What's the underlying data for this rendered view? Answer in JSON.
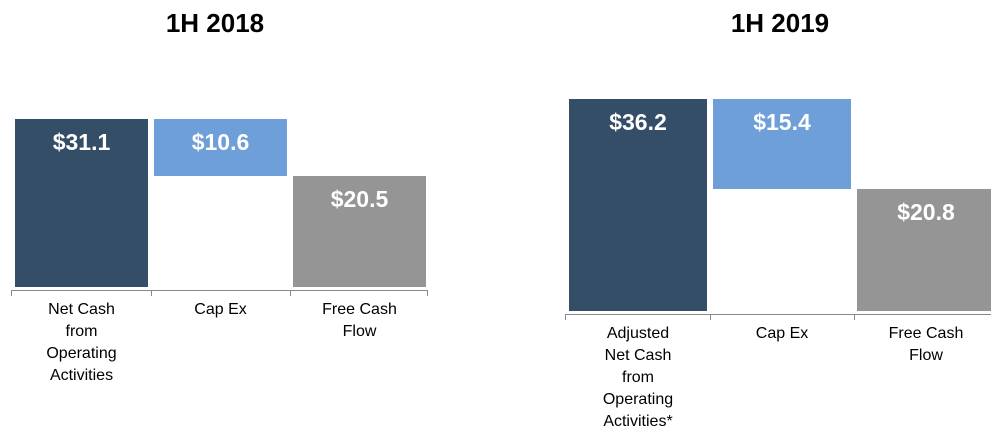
{
  "chart_data": [
    {
      "type": "waterfall",
      "title": "1H 2018",
      "categories": [
        "Net Cash from Operating Activities",
        "Cap Ex",
        "Free Cash Flow"
      ],
      "values": [
        31.1,
        10.6,
        20.5
      ],
      "value_labels": [
        "$31.1",
        "$10.6",
        "$20.5"
      ],
      "measure": [
        "total",
        "decrease",
        "total"
      ],
      "colors": [
        "#344e68",
        "#6f9fd8",
        "#959595"
      ]
    },
    {
      "type": "waterfall",
      "title": "1H 2019",
      "categories": [
        "Adjusted Net Cash from Operating Activities*",
        "Cap Ex",
        "Free Cash Flow"
      ],
      "values": [
        36.2,
        15.4,
        20.8
      ],
      "value_labels": [
        "$36.2",
        "$15.4",
        "$20.8"
      ],
      "measure": [
        "total",
        "decrease",
        "total"
      ],
      "colors": [
        "#344e68",
        "#6f9fd8",
        "#959595"
      ]
    }
  ]
}
